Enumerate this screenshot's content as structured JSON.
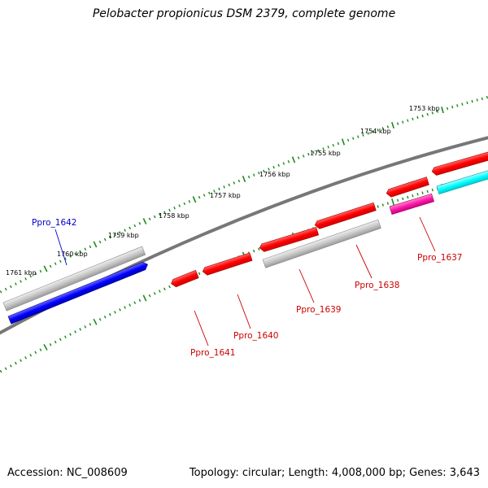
{
  "title": "Pelobacter propionicus DSM 2379, complete genome",
  "footer": {
    "accession": "Accession: NC_008609",
    "summary": "Topology: circular; Length: 4,008,000 bp; Genes: 3,643"
  },
  "colors": {
    "backbone": "#777777",
    "tick": "#1a8a1a",
    "label_red": "#cc0000",
    "label_blue": "#0000cc",
    "gene_red": "#ff0000",
    "gene_grey": "#c8c8c8",
    "gene_blue": "#0000ff",
    "gene_magenta": "#ff1aa8",
    "gene_cyan": "#00ffff"
  },
  "kbp_labels": [
    "1753 kbp",
    "1754 kbp",
    "1755 kbp",
    "1756 kbp",
    "1757 kbp",
    "1758 kbp",
    "1759 kbp",
    "1760 kbp",
    "1761 kbp"
  ],
  "genes": [
    {
      "label": "Ppro_1642",
      "color": "blue"
    },
    {
      "label": "Ppro_1641",
      "color": "red"
    },
    {
      "label": "Ppro_1640",
      "color": "red"
    },
    {
      "label": "Ppro_1639",
      "color": "red"
    },
    {
      "label": "Ppro_1638",
      "color": "red"
    },
    {
      "label": "Ppro_1637",
      "color": "red"
    }
  ]
}
